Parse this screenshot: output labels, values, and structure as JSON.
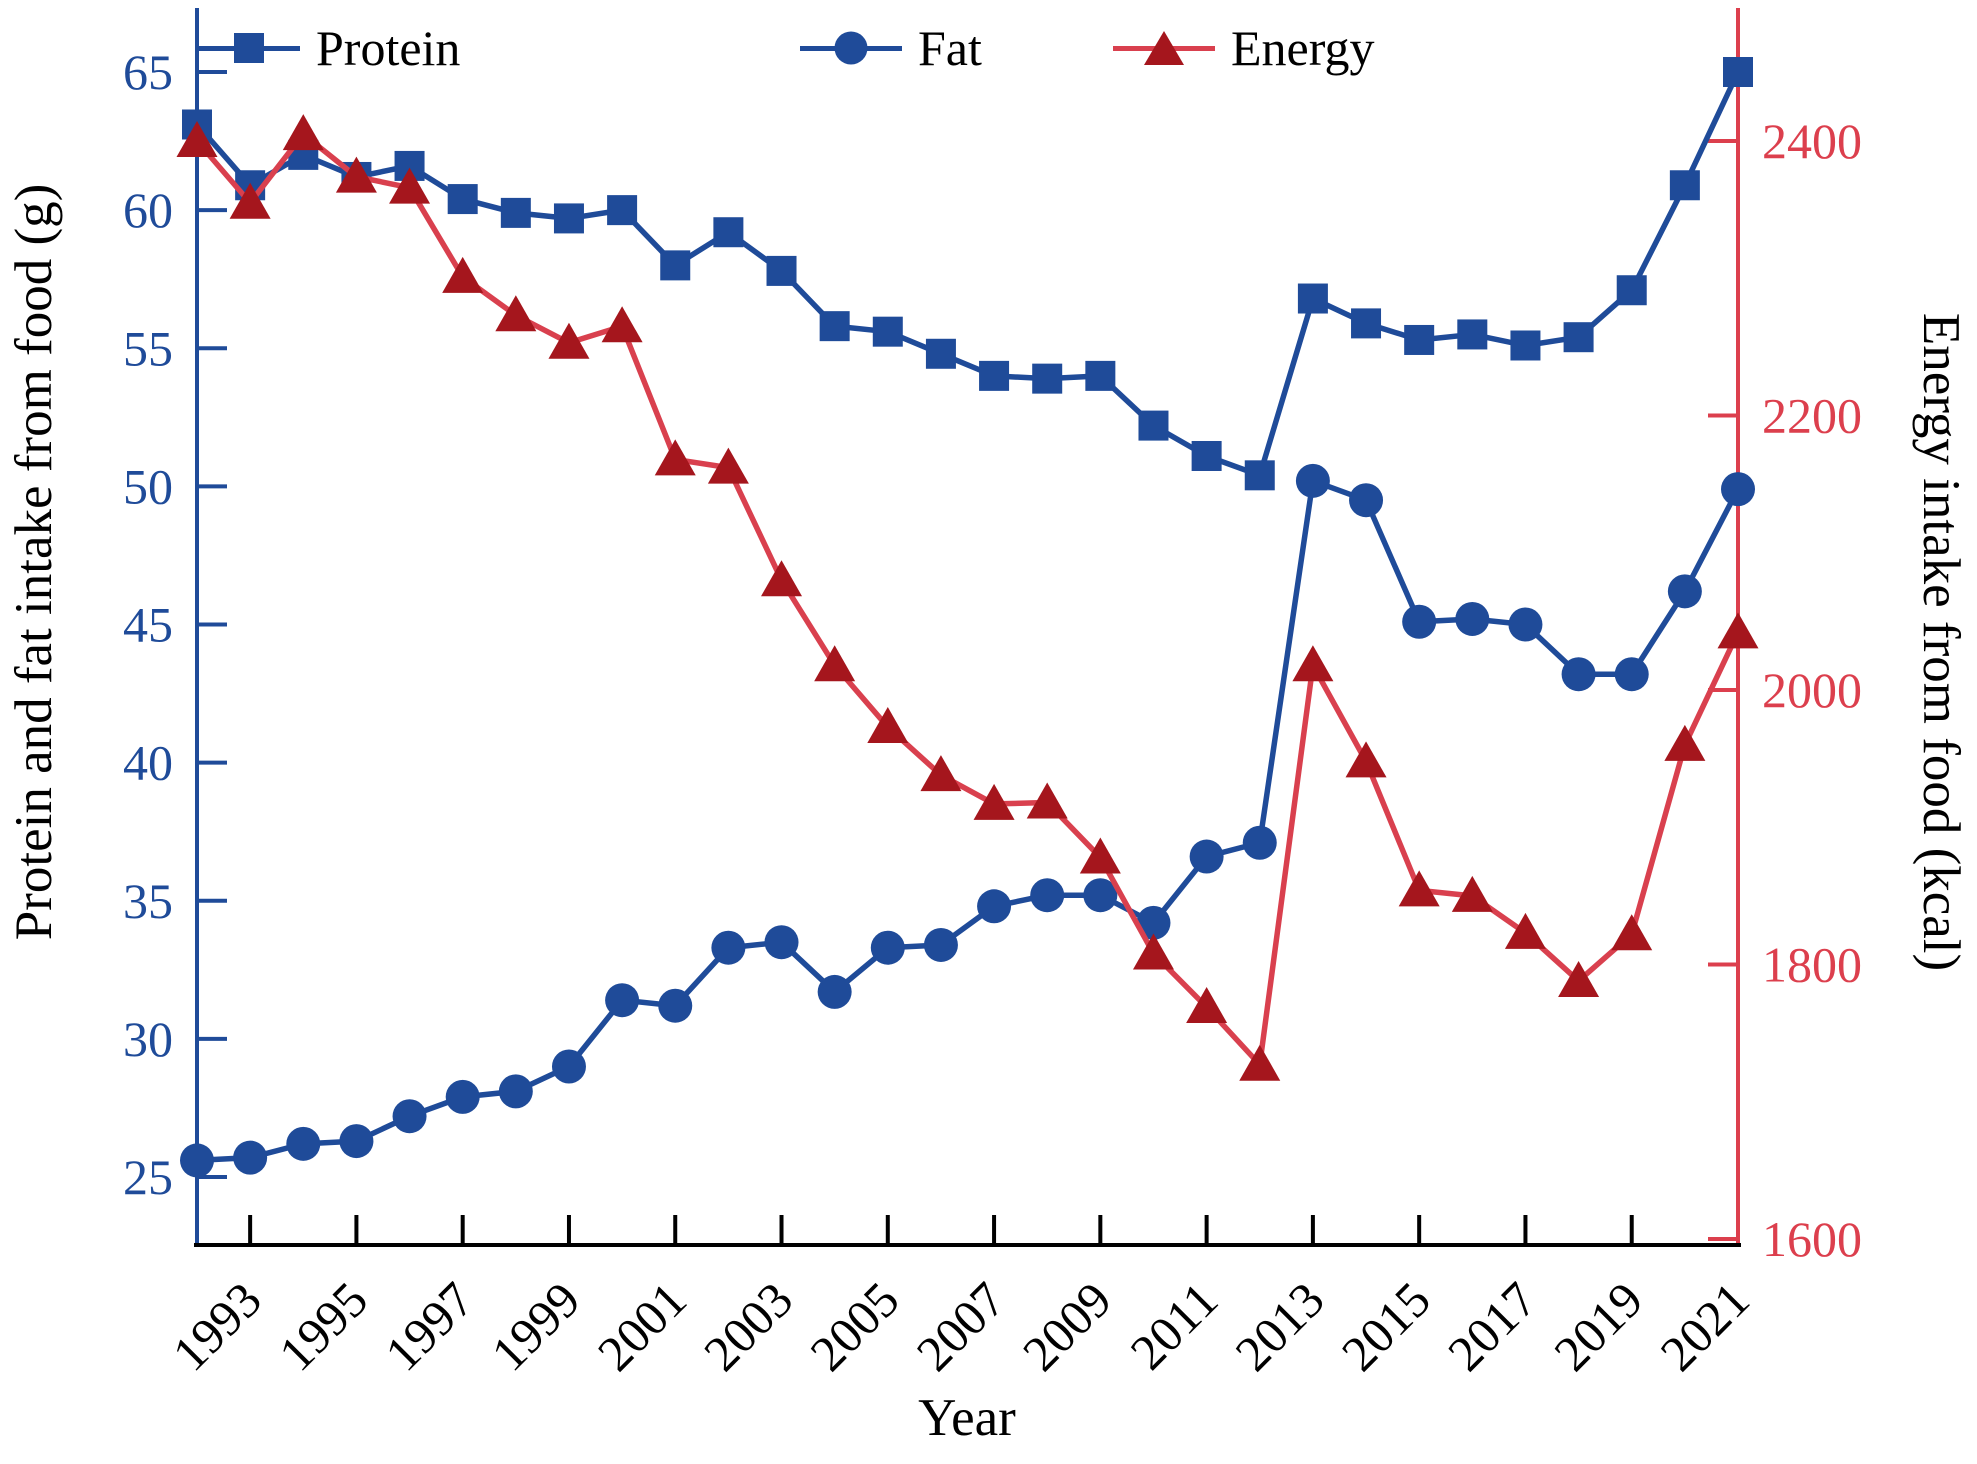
{
  "page": {
    "background": "#ffffff"
  },
  "colors": {
    "blue": "#1F4B99",
    "red_line": "#D9404E",
    "red_marker": "#A5161D",
    "red_axis": "#DC3F4D",
    "black": "#000000"
  },
  "legend": {
    "items": [
      {
        "label": "Protein",
        "marker": "square-icon",
        "color": "#1F4B99"
      },
      {
        "label": "Fat",
        "marker": "circle-icon",
        "color": "#1F4B99"
      },
      {
        "label": "Energy",
        "marker": "triangle-icon",
        "color": "#A5161D"
      }
    ]
  },
  "axes": {
    "left": {
      "title": "Protein and fat intake from food (g)",
      "ticks": [
        25,
        30,
        35,
        40,
        45,
        50,
        55,
        60,
        65
      ],
      "range": [
        22.6,
        67.3
      ],
      "color": "#1F4B99"
    },
    "right": {
      "title": "Energy intake from food (kcal)",
      "ticks": [
        1600,
        1800,
        2000,
        2200,
        2400
      ],
      "range": [
        1597,
        2500
      ],
      "color": "#DC3F4D"
    },
    "x": {
      "title": "Year",
      "tick_labels": [
        "1993",
        "1995",
        "1997",
        "1999",
        "2001",
        "2003",
        "2005",
        "2007",
        "2009",
        "2011",
        "2013",
        "2015",
        "2017",
        "2019",
        "2021"
      ],
      "range": [
        1992,
        2021
      ],
      "color": "#000000"
    }
  },
  "chart_data": {
    "type": "line",
    "title": "",
    "xlabel": "Year",
    "ylabel_left": "Protein and fat intake from food (g)",
    "ylabel_right": "Energy intake from food (kcal)",
    "grid": false,
    "legend_position": "top-inside",
    "x": [
      1992,
      1993,
      1994,
      1995,
      1996,
      1997,
      1998,
      1999,
      2000,
      2001,
      2002,
      2003,
      2004,
      2005,
      2006,
      2007,
      2008,
      2009,
      2010,
      2011,
      2012,
      2013,
      2014,
      2015,
      2016,
      2017,
      2018,
      2019,
      2020,
      2021
    ],
    "series": [
      {
        "name": "Protein",
        "axis": "left",
        "marker": "square",
        "unit": "g",
        "values": [
          63.1,
          60.9,
          62.0,
          61.2,
          61.6,
          60.4,
          59.9,
          59.7,
          60.0,
          58.0,
          59.2,
          57.8,
          55.8,
          55.6,
          54.8,
          54.0,
          53.9,
          54.0,
          52.2,
          51.1,
          50.4,
          56.8,
          55.9,
          55.3,
          55.5,
          55.1,
          55.4,
          57.1,
          60.9,
          65.0
        ]
      },
      {
        "name": "Fat",
        "axis": "left",
        "marker": "circle",
        "unit": "g",
        "values": [
          25.6,
          25.7,
          26.2,
          26.3,
          27.2,
          27.9,
          28.1,
          29.0,
          31.4,
          31.2,
          33.3,
          33.5,
          31.7,
          33.3,
          33.4,
          34.8,
          35.2,
          35.2,
          34.2,
          36.6,
          37.1,
          50.2,
          49.5,
          45.1,
          45.2,
          45.0,
          43.2,
          43.2,
          46.2,
          49.9
        ]
      },
      {
        "name": "Energy",
        "axis": "right",
        "marker": "triangle",
        "unit": "kcal",
        "values": [
          2400,
          2355,
          2405,
          2374,
          2366,
          2301,
          2273,
          2253,
          2265,
          2168,
          2162,
          2080,
          2018,
          1973,
          1938,
          1917,
          1918,
          1878,
          1808,
          1769,
          1727,
          2018,
          1948,
          1854,
          1850,
          1823,
          1788,
          1822,
          1960,
          2042
        ]
      }
    ]
  }
}
